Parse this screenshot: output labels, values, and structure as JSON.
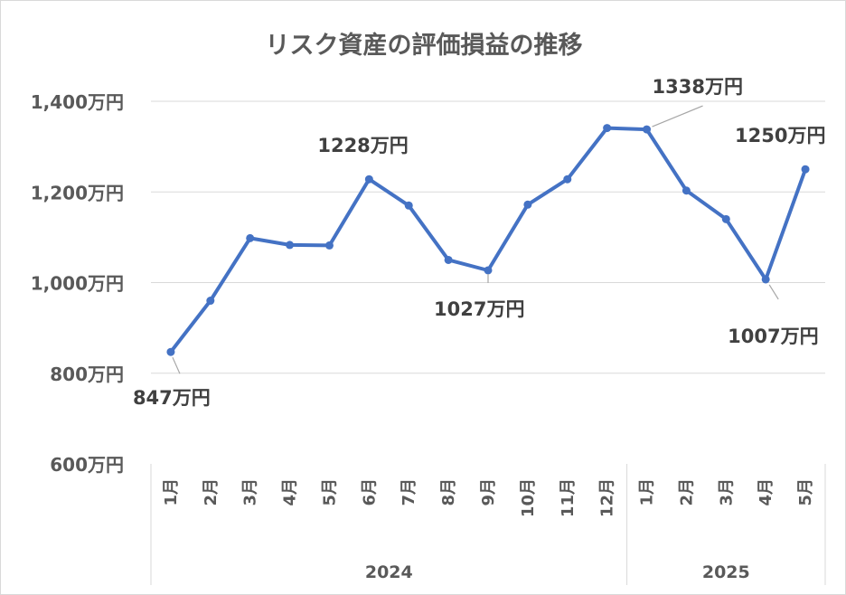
{
  "chart_data": {
    "type": "line",
    "title": "リスク資産の評価損益の推移",
    "y_unit": "万円",
    "ylim": [
      600,
      1400
    ],
    "y_ticks": [
      600,
      800,
      1000,
      1200,
      1400
    ],
    "y_tick_labels": [
      "600万円",
      "800万円",
      "1,000万円",
      "1,200万円",
      "1,400万円"
    ],
    "grid": true,
    "legend": "none",
    "color": "#4472C4",
    "groups": [
      {
        "label": "2024",
        "count": 12
      },
      {
        "label": "2025",
        "count": 5
      }
    ],
    "categories": [
      "1月",
      "2月",
      "3月",
      "4月",
      "5月",
      "6月",
      "7月",
      "8月",
      "9月",
      "10月",
      "11月",
      "12月",
      "1月",
      "2月",
      "3月",
      "4月",
      "5月"
    ],
    "values": [
      847,
      960,
      1098,
      1083,
      1082,
      1228,
      1170,
      1050,
      1027,
      1172,
      1228,
      1341,
      1338,
      1203,
      1140,
      1007,
      1250
    ],
    "data_labels": [
      {
        "index": 0,
        "text": "847万円"
      },
      {
        "index": 5,
        "text": "1228万円"
      },
      {
        "index": 8,
        "text": "1027万円"
      },
      {
        "index": 12,
        "text": "1338万円"
      },
      {
        "index": 15,
        "text": "1007万円"
      },
      {
        "index": 16,
        "text": "1250万円"
      }
    ]
  }
}
